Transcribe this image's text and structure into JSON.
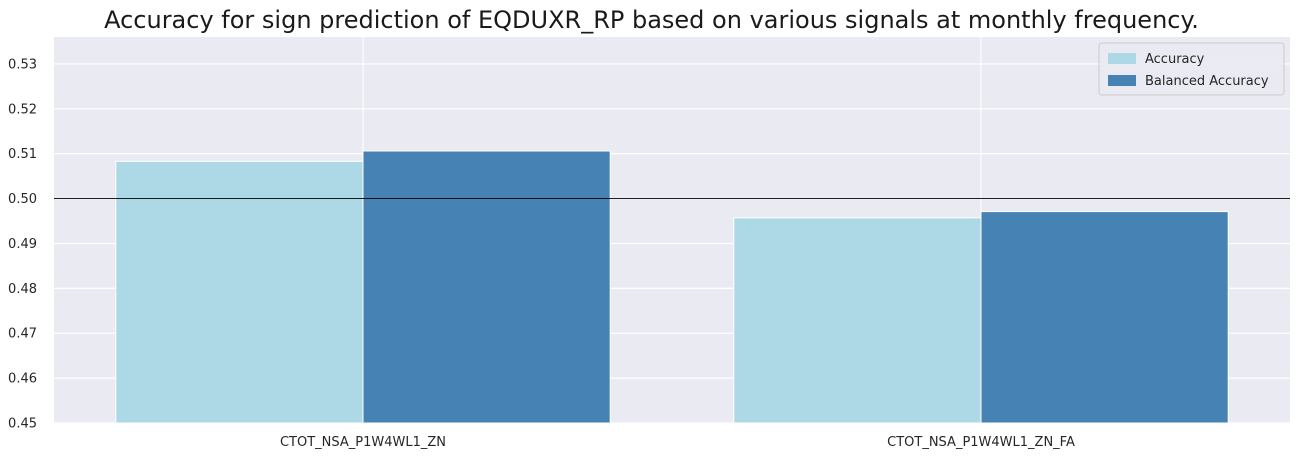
{
  "chart_data": {
    "type": "bar",
    "title": "Accuracy for sign prediction of EQDUXR_RP based on various signals at monthly frequency.",
    "categories": [
      "CTOT_NSA_P1W4WL1_ZN",
      "CTOT_NSA_P1W4WL1_ZN_FA"
    ],
    "series": [
      {
        "name": "Accuracy",
        "values": [
          0.5083,
          0.4957
        ],
        "color": "#add8e6"
      },
      {
        "name": "Balanced Accuracy",
        "values": [
          0.5106,
          0.4971
        ],
        "color": "#4682b4"
      }
    ],
    "xlabel": "",
    "ylabel": "",
    "ylim": [
      0.45,
      0.536
    ],
    "yticks": [
      0.45,
      0.46,
      0.47,
      0.48,
      0.49,
      0.5,
      0.51,
      0.52,
      0.53
    ],
    "ytick_labels": [
      "0.45",
      "0.46",
      "0.47",
      "0.48",
      "0.49",
      "0.50",
      "0.51",
      "0.52",
      "0.53"
    ],
    "reference_line": 0.5,
    "grid": true,
    "legend_position": "top-right",
    "background_color": "#eaeaf2"
  }
}
